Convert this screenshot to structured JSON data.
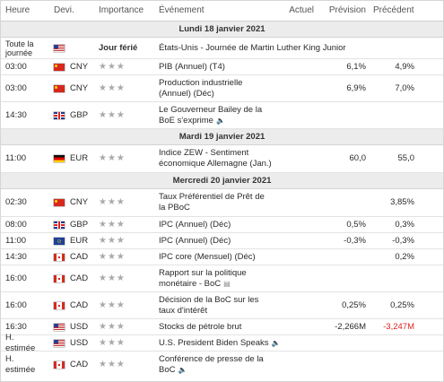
{
  "header": {
    "time": "Heure",
    "currency": "Devi.",
    "importance": "Importance",
    "event": "Événement",
    "actual": "Actuel",
    "forecast": "Prévision",
    "previous": "Précédent"
  },
  "days": [
    {
      "label": "Lundi 18 janvier 2021",
      "events": [
        {
          "time": "Toute la journée",
          "flag": "us",
          "currency": "",
          "importance": "Jour férié",
          "event": "États-Unis - Journée de Martin Luther King Junior",
          "actual": "",
          "forecast": "",
          "previous": "",
          "speaker": false
        },
        {
          "time": "03:00",
          "flag": "cn",
          "currency": "CNY",
          "importance": "★★★",
          "event": "PIB (Annuel) (T4)",
          "actual": "",
          "forecast": "6,1%",
          "previous": "4,9%",
          "speaker": false
        },
        {
          "time": "03:00",
          "flag": "cn",
          "currency": "CNY",
          "importance": "★★★",
          "event": "Production industrielle (Annuel) (Déc)",
          "actual": "",
          "forecast": "6,9%",
          "previous": "7,0%",
          "speaker": false
        },
        {
          "time": "14:30",
          "flag": "gb",
          "currency": "GBP",
          "importance": "★★★",
          "event": "Le Gouverneur Bailey de la BoE s'exprime",
          "actual": "",
          "forecast": "",
          "previous": "",
          "speaker": true
        }
      ]
    },
    {
      "label": "Mardi 19 janvier 2021",
      "events": [
        {
          "time": "11:00",
          "flag": "de",
          "currency": "EUR",
          "importance": "★★★",
          "event": "Indice ZEW - Sentiment économique Allemagne (Jan.)",
          "actual": "",
          "forecast": "60,0",
          "previous": "55,0",
          "speaker": false
        }
      ]
    },
    {
      "label": "Mercredi 20 janvier 2021",
      "events": [
        {
          "time": "02:30",
          "flag": "cn",
          "currency": "CNY",
          "importance": "★★★",
          "event": "Taux Préférentiel de Prêt de la PBoC",
          "actual": "",
          "forecast": "",
          "previous": "3,85%",
          "speaker": false
        },
        {
          "time": "08:00",
          "flag": "gb",
          "currency": "GBP",
          "importance": "★★★",
          "event": "IPC (Annuel) (Déc)",
          "actual": "",
          "forecast": "0,5%",
          "previous": "0,3%",
          "speaker": false
        },
        {
          "time": "11:00",
          "flag": "eu",
          "currency": "EUR",
          "importance": "★★★",
          "event": "IPC (Annuel) (Déc)",
          "actual": "",
          "forecast": "-0,3%",
          "previous": "-0,3%",
          "speaker": false
        },
        {
          "time": "14:30",
          "flag": "ca",
          "currency": "CAD",
          "importance": "★★★",
          "event": "IPC core (Mensuel) (Déc)",
          "actual": "",
          "forecast": "",
          "previous": "0,2%",
          "speaker": false
        },
        {
          "time": "16:00",
          "flag": "ca",
          "currency": "CAD",
          "importance": "★★★",
          "event": "Rapport sur la politique monétaire - BoC",
          "actual": "",
          "forecast": "",
          "previous": "",
          "doc": true
        },
        {
          "time": "16:00",
          "flag": "ca",
          "currency": "CAD",
          "importance": "★★★",
          "event": "Décision de la BoC sur les taux d'intérêt",
          "actual": "",
          "forecast": "0,25%",
          "previous": "0,25%",
          "speaker": false
        },
        {
          "time": "16:30",
          "flag": "us",
          "currency": "USD",
          "importance": "★★★",
          "event": "Stocks de pétrole brut",
          "actual": "",
          "forecast": "-2,266M",
          "previous": "-3,247M",
          "previous_color": "#dd2222",
          "speaker": false
        },
        {
          "time": "H. estimée",
          "flag": "us",
          "currency": "USD",
          "importance": "★★★",
          "event": "U.S. President Biden Speaks",
          "actual": "",
          "forecast": "",
          "previous": "",
          "speaker": true
        },
        {
          "time": "H. estimée",
          "flag": "ca",
          "currency": "CAD",
          "importance": "★★★",
          "event": "Conférence de presse de la BoC",
          "actual": "",
          "forecast": "",
          "previous": "",
          "speaker": true
        }
      ]
    }
  ],
  "colors": {
    "negative": "#dd2222",
    "day_band": "#ececec",
    "stars": "#a9a9a9"
  }
}
